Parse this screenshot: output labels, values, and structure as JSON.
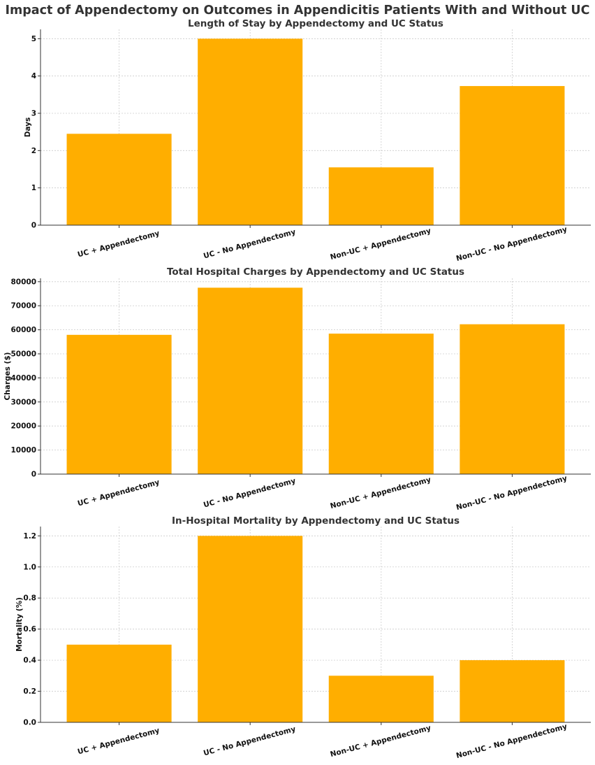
{
  "figure": {
    "title": "Impact of Appendectomy on Outcomes in Appendicitis Patients With and Without UC"
  },
  "chart_data": [
    {
      "type": "bar",
      "title": "Length of Stay by Appendectomy and UC Status",
      "xlabel": "",
      "ylabel": "Days",
      "categories": [
        "UC + Appendectomy",
        "UC - No Appendectomy",
        "Non-UC + Appendectomy",
        "Non-UC - No Appendectomy"
      ],
      "values": [
        2.45,
        5.0,
        1.55,
        3.73
      ],
      "ylim": [
        0,
        5.25
      ],
      "yticks": [
        0,
        1,
        2,
        3,
        4,
        5
      ],
      "grid": true,
      "bar_color": "#FFAE00"
    },
    {
      "type": "bar",
      "title": "Total Hospital Charges by Appendectomy and UC Status",
      "xlabel": "",
      "ylabel": "Charges ($)",
      "categories": [
        "UC + Appendectomy",
        "UC - No Appendectomy",
        "Non-UC + Appendectomy",
        "Non-UC - No Appendectomy"
      ],
      "values": [
        57900,
        77500,
        58400,
        62300
      ],
      "ylim": [
        0,
        81400
      ],
      "yticks": [
        0,
        10000,
        20000,
        30000,
        40000,
        50000,
        60000,
        70000,
        80000
      ],
      "grid": true,
      "bar_color": "#FFAE00"
    },
    {
      "type": "bar",
      "title": "In-Hospital Mortality by Appendectomy and UC Status",
      "xlabel": "",
      "ylabel": "Mortality (%)",
      "categories": [
        "UC + Appendectomy",
        "UC - No Appendectomy",
        "Non-UC + Appendectomy",
        "Non-UC - No Appendectomy"
      ],
      "values": [
        0.5,
        1.2,
        0.3,
        0.4
      ],
      "ylim": [
        0,
        1.26
      ],
      "yticks": [
        "0.0",
        "0.2",
        "0.4",
        "0.6",
        "0.8",
        "1.0",
        "1.2"
      ],
      "grid": true,
      "bar_color": "#FFAE00"
    }
  ]
}
